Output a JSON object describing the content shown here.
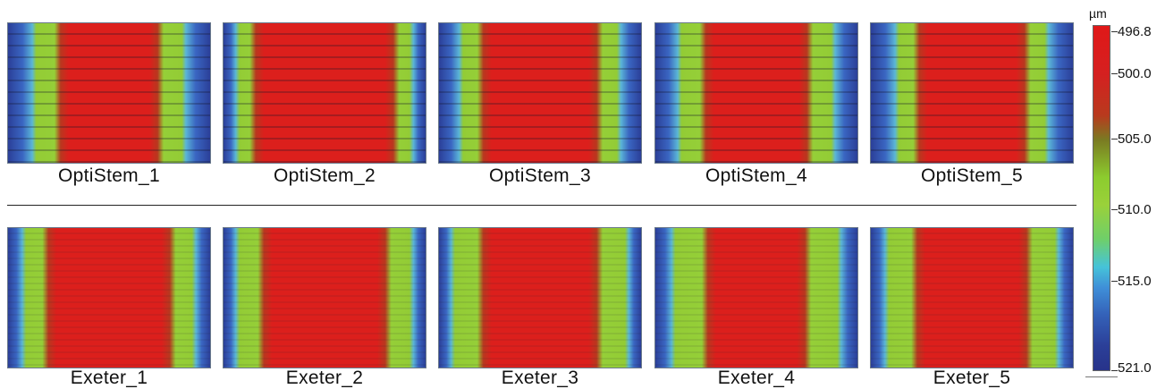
{
  "top_row": {
    "labels": [
      "OptiStem_1",
      "OptiStem_2",
      "OptiStem_3",
      "OptiStem_4",
      "OptiStem_5"
    ]
  },
  "bottom_row": {
    "labels": [
      "Exeter_1",
      "Exeter_2",
      "Exeter_3",
      "Exeter_4",
      "Exeter_5"
    ]
  },
  "color_scale": {
    "unit": "µm",
    "ticks": [
      "496.8",
      "500.0",
      "505.0",
      "510.0",
      "515.0",
      "521.0"
    ],
    "colors": {
      "low": "#e01818",
      "mid": "#9ad13a",
      "high": "#27338a"
    }
  }
}
